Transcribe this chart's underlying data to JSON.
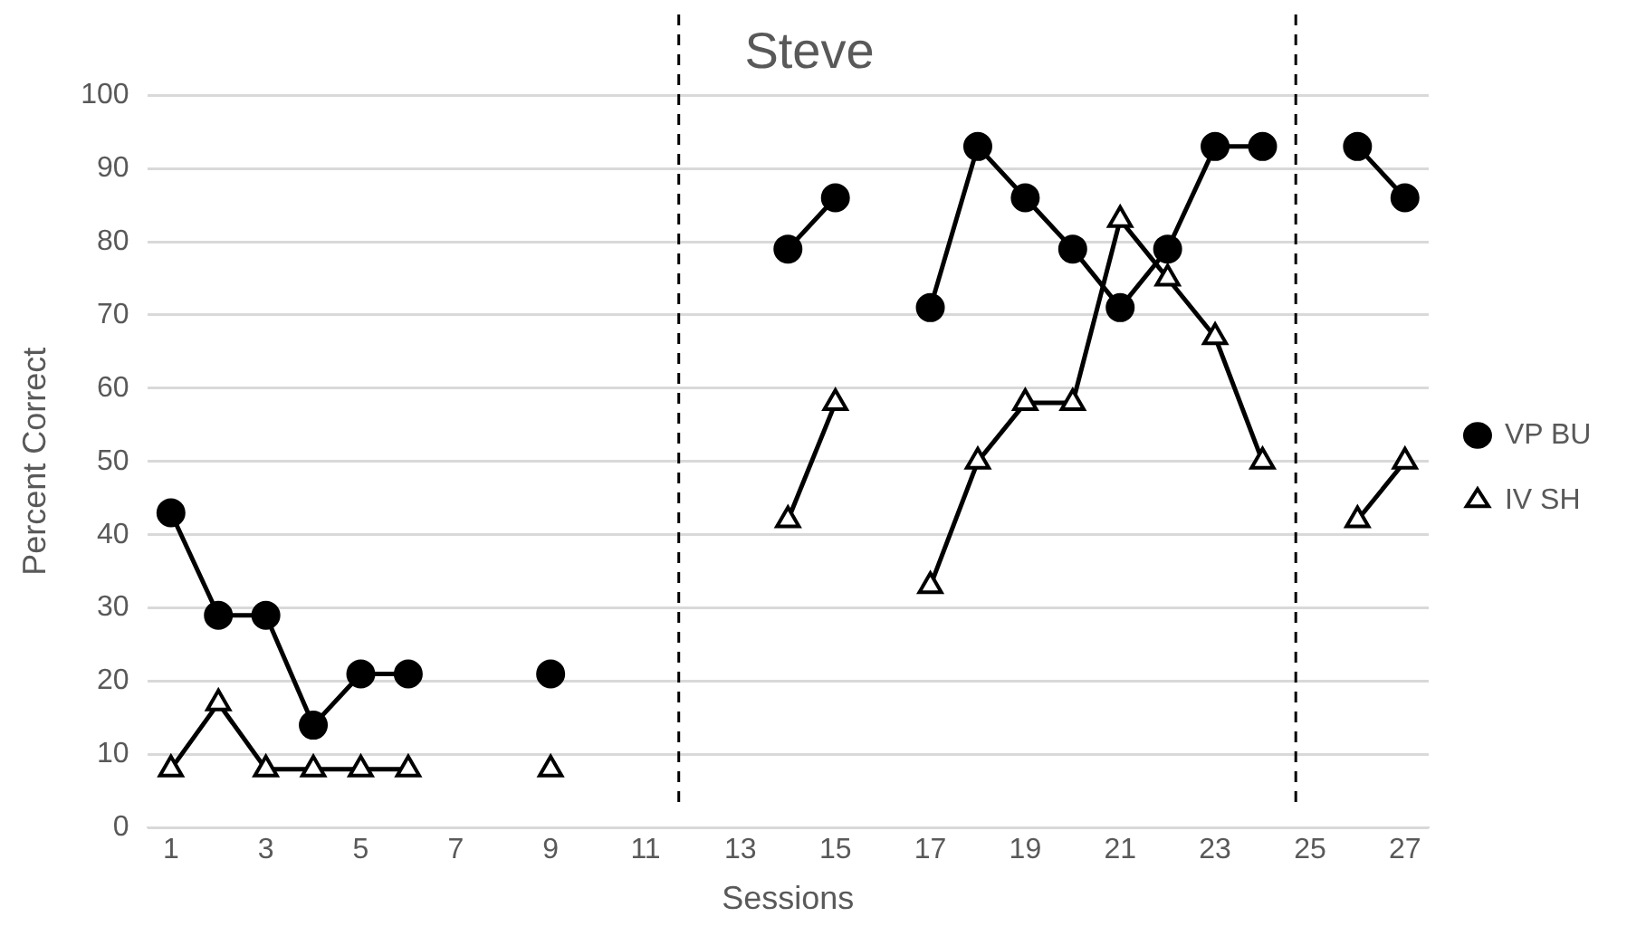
{
  "chart_data": {
    "type": "line",
    "title": "Steve",
    "xlabel": "Sessions",
    "ylabel": "Percent Correct",
    "x": [
      1,
      2,
      3,
      4,
      5,
      6,
      7,
      8,
      9,
      10,
      11,
      12,
      13,
      14,
      15,
      16,
      17,
      18,
      19,
      20,
      21,
      22,
      23,
      24,
      25,
      26,
      27
    ],
    "series": [
      {
        "name": "VP BU",
        "color": "#000000",
        "marker": "circle",
        "values": [
          43,
          29,
          29,
          14,
          21,
          21,
          null,
          null,
          21,
          null,
          null,
          null,
          null,
          79,
          86,
          null,
          71,
          93,
          86,
          79,
          71,
          79,
          93,
          93,
          null,
          93,
          86
        ]
      },
      {
        "name": "IV SH",
        "color": "#000000",
        "marker": "triangle",
        "values": [
          8,
          17,
          8,
          8,
          8,
          8,
          null,
          null,
          8,
          null,
          null,
          null,
          null,
          42,
          58,
          null,
          33,
          50,
          58,
          58,
          83,
          75,
          67,
          50,
          null,
          42,
          50
        ]
      }
    ],
    "xlim": [
      0.5,
      27.5
    ],
    "xticks": [
      1,
      3,
      5,
      7,
      9,
      11,
      13,
      15,
      17,
      19,
      21,
      23,
      25,
      27
    ],
    "ylim": [
      0,
      100
    ],
    "yticks": [
      0,
      10,
      20,
      30,
      40,
      50,
      60,
      70,
      80,
      90,
      100
    ],
    "ref_lines": [
      {
        "axis": "x",
        "value": 11.7,
        "line_style": "dashed",
        "color": "#000000"
      },
      {
        "axis": "x",
        "value": 24.7,
        "line_style": "dashed",
        "color": "#000000"
      }
    ],
    "grid": "y",
    "legend": "right"
  }
}
